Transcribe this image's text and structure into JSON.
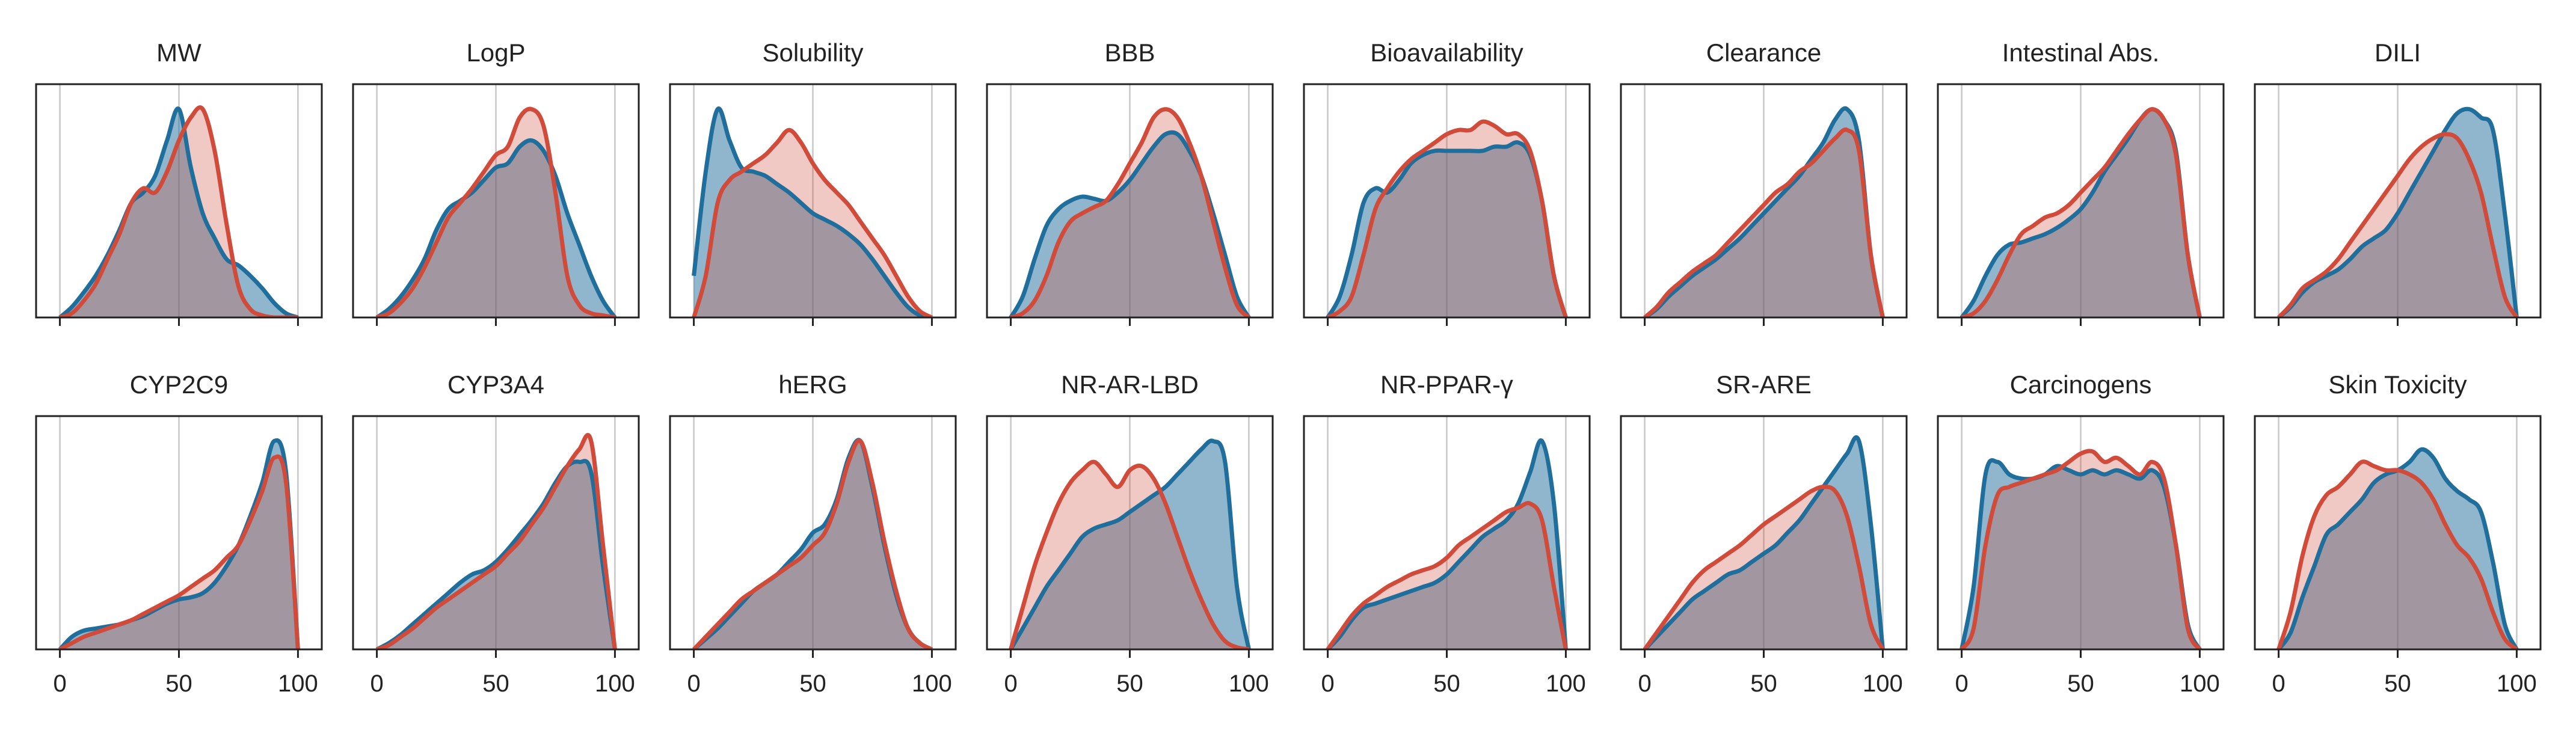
{
  "chart_data": {
    "type": "area",
    "description_kind": "density-overlay-small-multiples",
    "xlim": [
      -10,
      110
    ],
    "x_ticks": [
      0,
      50,
      100
    ],
    "x_tick_labels": [
      "0",
      "50",
      "100"
    ],
    "y_axis_visible": false,
    "grid": "vertical-x",
    "colors": {
      "series_a": "#1f6e9c",
      "series_b": "#d14b3b",
      "overlap": "#9e8f99",
      "grid": "#c8c8c8",
      "axis": "#222222"
    },
    "x": [
      0,
      5,
      10,
      15,
      20,
      25,
      30,
      35,
      40,
      45,
      50,
      55,
      60,
      65,
      70,
      75,
      80,
      85,
      90,
      95,
      100
    ],
    "panels": [
      {
        "title": "MW",
        "series": [
          {
            "values": [
              0,
              0.05,
              0.12,
              0.2,
              0.3,
              0.42,
              0.55,
              0.6,
              0.68,
              0.85,
              1,
              0.72,
              0.5,
              0.38,
              0.28,
              0.25,
              0.2,
              0.14,
              0.07,
              0.02,
              0
            ]
          },
          {
            "values": [
              0,
              0.02,
              0.08,
              0.16,
              0.28,
              0.4,
              0.55,
              0.62,
              0.6,
              0.7,
              0.85,
              0.96,
              1,
              0.8,
              0.45,
              0.15,
              0.04,
              0.01,
              0,
              0,
              0
            ]
          }
        ]
      },
      {
        "title": "LogP",
        "series": [
          {
            "values": [
              0,
              0.04,
              0.1,
              0.18,
              0.28,
              0.42,
              0.52,
              0.56,
              0.6,
              0.66,
              0.72,
              0.74,
              0.82,
              0.85,
              0.8,
              0.68,
              0.5,
              0.35,
              0.2,
              0.08,
              0
            ]
          },
          {
            "values": [
              0,
              0.02,
              0.07,
              0.14,
              0.24,
              0.36,
              0.48,
              0.55,
              0.62,
              0.7,
              0.78,
              0.82,
              0.96,
              1,
              0.92,
              0.6,
              0.2,
              0.06,
              0.02,
              0.01,
              0
            ]
          }
        ]
      },
      {
        "title": "Solubility",
        "series": [
          {
            "values": [
              0.2,
              0.7,
              1,
              0.85,
              0.72,
              0.7,
              0.68,
              0.64,
              0.6,
              0.55,
              0.5,
              0.47,
              0.44,
              0.4,
              0.35,
              0.28,
              0.2,
              0.12,
              0.05,
              0.01,
              0
            ]
          },
          {
            "values": [
              0,
              0.2,
              0.55,
              0.66,
              0.7,
              0.74,
              0.78,
              0.84,
              0.9,
              0.84,
              0.74,
              0.66,
              0.6,
              0.54,
              0.46,
              0.38,
              0.3,
              0.2,
              0.1,
              0.03,
              0
            ]
          }
        ]
      },
      {
        "title": "BBB",
        "series": [
          {
            "values": [
              0,
              0.1,
              0.28,
              0.44,
              0.52,
              0.56,
              0.58,
              0.57,
              0.56,
              0.6,
              0.66,
              0.74,
              0.82,
              0.88,
              0.88,
              0.8,
              0.68,
              0.5,
              0.3,
              0.1,
              0
            ]
          },
          {
            "values": [
              0,
              0.02,
              0.08,
              0.2,
              0.36,
              0.46,
              0.5,
              0.53,
              0.56,
              0.64,
              0.74,
              0.84,
              0.96,
              1,
              0.96,
              0.84,
              0.68,
              0.46,
              0.24,
              0.06,
              0
            ]
          }
        ]
      },
      {
        "title": "Bioavailability",
        "series": [
          {
            "values": [
              0,
              0.1,
              0.3,
              0.55,
              0.62,
              0.6,
              0.66,
              0.74,
              0.78,
              0.8,
              0.8,
              0.8,
              0.8,
              0.8,
              0.82,
              0.82,
              0.84,
              0.78,
              0.56,
              0.2,
              0
            ]
          },
          {
            "values": [
              0,
              0.03,
              0.1,
              0.3,
              0.52,
              0.62,
              0.7,
              0.76,
              0.8,
              0.84,
              0.88,
              0.9,
              0.9,
              0.94,
              0.92,
              0.88,
              0.88,
              0.8,
              0.56,
              0.2,
              0
            ]
          }
        ]
      },
      {
        "title": "Clearance",
        "series": [
          {
            "values": [
              0,
              0.04,
              0.1,
              0.15,
              0.2,
              0.24,
              0.28,
              0.33,
              0.38,
              0.44,
              0.5,
              0.56,
              0.62,
              0.68,
              0.76,
              0.84,
              0.95,
              1,
              0.85,
              0.3,
              0
            ]
          },
          {
            "values": [
              0,
              0.05,
              0.12,
              0.17,
              0.22,
              0.26,
              0.3,
              0.36,
              0.42,
              0.48,
              0.54,
              0.6,
              0.64,
              0.7,
              0.74,
              0.8,
              0.86,
              0.9,
              0.8,
              0.3,
              0
            ]
          }
        ]
      },
      {
        "title": "Intestinal Abs.",
        "series": [
          {
            "values": [
              0,
              0.08,
              0.2,
              0.3,
              0.35,
              0.36,
              0.38,
              0.4,
              0.43,
              0.47,
              0.52,
              0.6,
              0.7,
              0.78,
              0.86,
              0.95,
              1,
              0.95,
              0.8,
              0.3,
              0
            ]
          },
          {
            "values": [
              0,
              0.02,
              0.08,
              0.18,
              0.3,
              0.4,
              0.44,
              0.48,
              0.5,
              0.54,
              0.6,
              0.66,
              0.72,
              0.8,
              0.88,
              0.95,
              1,
              0.95,
              0.78,
              0.3,
              0
            ]
          }
        ]
      },
      {
        "title": "DILI",
        "series": [
          {
            "values": [
              0,
              0.05,
              0.12,
              0.17,
              0.2,
              0.23,
              0.28,
              0.34,
              0.38,
              0.42,
              0.5,
              0.6,
              0.7,
              0.8,
              0.9,
              0.98,
              1,
              0.96,
              0.9,
              0.5,
              0
            ]
          },
          {
            "values": [
              0,
              0.06,
              0.14,
              0.18,
              0.22,
              0.28,
              0.36,
              0.44,
              0.52,
              0.6,
              0.68,
              0.76,
              0.82,
              0.86,
              0.88,
              0.86,
              0.76,
              0.6,
              0.34,
              0.1,
              0
            ]
          }
        ]
      },
      {
        "title": "CYP2C9",
        "series": [
          {
            "values": [
              0,
              0.06,
              0.09,
              0.1,
              0.11,
              0.12,
              0.14,
              0.16,
              0.19,
              0.22,
              0.24,
              0.25,
              0.27,
              0.32,
              0.4,
              0.5,
              0.64,
              0.8,
              1,
              0.85,
              0
            ]
          },
          {
            "values": [
              0,
              0.03,
              0.06,
              0.08,
              0.1,
              0.12,
              0.14,
              0.17,
              0.2,
              0.23,
              0.26,
              0.3,
              0.34,
              0.38,
              0.44,
              0.5,
              0.62,
              0.76,
              0.92,
              0.8,
              0
            ]
          }
        ]
      },
      {
        "title": "CYP3A4",
        "series": [
          {
            "values": [
              0,
              0.03,
              0.07,
              0.12,
              0.17,
              0.22,
              0.27,
              0.32,
              0.36,
              0.38,
              0.42,
              0.48,
              0.55,
              0.62,
              0.7,
              0.8,
              0.88,
              0.9,
              0.85,
              0.4,
              0
            ]
          },
          {
            "values": [
              0,
              0.02,
              0.06,
              0.1,
              0.15,
              0.2,
              0.24,
              0.28,
              0.32,
              0.36,
              0.4,
              0.46,
              0.52,
              0.6,
              0.68,
              0.78,
              0.88,
              0.96,
              1,
              0.5,
              0
            ]
          }
        ]
      },
      {
        "title": "hERG",
        "series": [
          {
            "values": [
              0,
              0.05,
              0.1,
              0.16,
              0.22,
              0.28,
              0.32,
              0.36,
              0.42,
              0.48,
              0.56,
              0.6,
              0.72,
              0.92,
              1,
              0.78,
              0.5,
              0.26,
              0.1,
              0.03,
              0
            ]
          },
          {
            "values": [
              0,
              0.06,
              0.12,
              0.18,
              0.24,
              0.28,
              0.32,
              0.36,
              0.4,
              0.44,
              0.5,
              0.56,
              0.7,
              0.9,
              1,
              0.8,
              0.52,
              0.28,
              0.1,
              0.03,
              0
            ]
          }
        ]
      },
      {
        "title": "NR-AR-LBD",
        "series": [
          {
            "values": [
              0,
              0.1,
              0.2,
              0.3,
              0.38,
              0.46,
              0.54,
              0.58,
              0.6,
              0.62,
              0.66,
              0.7,
              0.74,
              0.78,
              0.84,
              0.9,
              0.96,
              1,
              0.9,
              0.3,
              0
            ]
          },
          {
            "values": [
              0,
              0.2,
              0.4,
              0.56,
              0.7,
              0.8,
              0.86,
              0.9,
              0.84,
              0.78,
              0.86,
              0.88,
              0.82,
              0.7,
              0.54,
              0.38,
              0.24,
              0.12,
              0.04,
              0.01,
              0
            ]
          }
        ]
      },
      {
        "title": "NR-PPAR-γ",
        "series": [
          {
            "values": [
              0,
              0.06,
              0.14,
              0.2,
              0.22,
              0.24,
              0.26,
              0.28,
              0.3,
              0.32,
              0.36,
              0.42,
              0.48,
              0.54,
              0.58,
              0.62,
              0.7,
              0.85,
              1,
              0.7,
              0
            ]
          },
          {
            "values": [
              0,
              0.08,
              0.16,
              0.22,
              0.26,
              0.3,
              0.33,
              0.36,
              0.38,
              0.4,
              0.44,
              0.5,
              0.54,
              0.58,
              0.62,
              0.66,
              0.68,
              0.7,
              0.62,
              0.3,
              0
            ]
          }
        ]
      },
      {
        "title": "SR-ARE",
        "series": [
          {
            "values": [
              0,
              0.06,
              0.12,
              0.18,
              0.24,
              0.28,
              0.32,
              0.36,
              0.38,
              0.42,
              0.46,
              0.5,
              0.56,
              0.62,
              0.7,
              0.78,
              0.86,
              0.94,
              1,
              0.6,
              0
            ]
          },
          {
            "values": [
              0,
              0.08,
              0.16,
              0.24,
              0.32,
              0.38,
              0.42,
              0.46,
              0.5,
              0.55,
              0.6,
              0.64,
              0.68,
              0.72,
              0.76,
              0.78,
              0.76,
              0.64,
              0.4,
              0.12,
              0
            ]
          }
        ]
      },
      {
        "title": "Carcinogens",
        "series": [
          {
            "values": [
              0,
              0.3,
              0.84,
              0.9,
              0.84,
              0.82,
              0.82,
              0.84,
              0.88,
              0.86,
              0.84,
              0.86,
              0.84,
              0.86,
              0.84,
              0.82,
              0.86,
              0.78,
              0.5,
              0.12,
              0
            ]
          },
          {
            "values": [
              0,
              0.1,
              0.5,
              0.74,
              0.78,
              0.8,
              0.82,
              0.84,
              0.86,
              0.9,
              0.94,
              0.95,
              0.9,
              0.92,
              0.88,
              0.84,
              0.9,
              0.82,
              0.5,
              0.1,
              0
            ]
          }
        ]
      },
      {
        "title": "Skin Toxicity",
        "series": [
          {
            "values": [
              0,
              0.08,
              0.25,
              0.4,
              0.55,
              0.6,
              0.66,
              0.72,
              0.8,
              0.84,
              0.86,
              0.9,
              0.96,
              0.92,
              0.82,
              0.76,
              0.72,
              0.66,
              0.42,
              0.12,
              0
            ]
          },
          {
            "values": [
              0,
              0.18,
              0.45,
              0.64,
              0.74,
              0.78,
              0.84,
              0.9,
              0.88,
              0.86,
              0.86,
              0.84,
              0.8,
              0.72,
              0.6,
              0.5,
              0.44,
              0.34,
              0.18,
              0.05,
              0
            ]
          }
        ]
      }
    ]
  }
}
